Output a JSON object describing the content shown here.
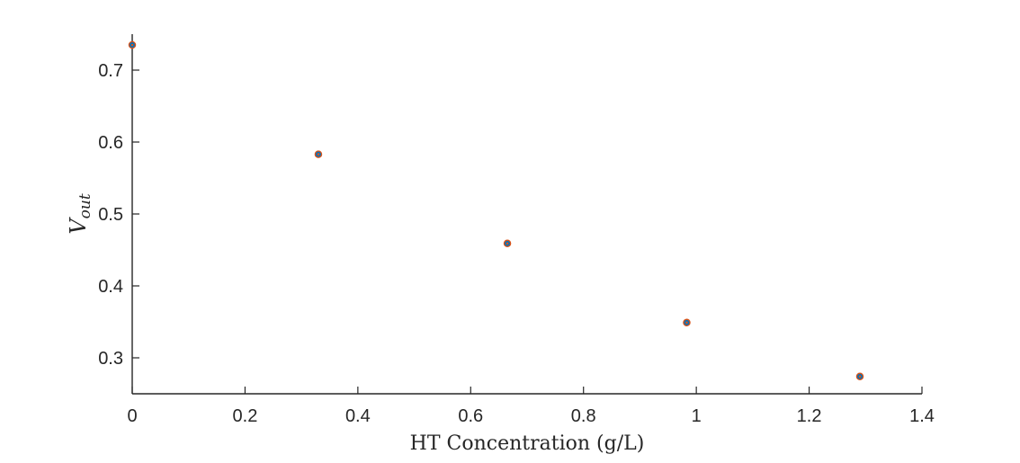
{
  "chart_data": {
    "type": "scatter",
    "title": "",
    "xlabel": "HT Concentration (g/L)",
    "ylabel": {
      "base": "V",
      "subscript": "out"
    },
    "xlim": [
      0,
      1.4
    ],
    "ylim": [
      0.25,
      0.75
    ],
    "xticks": [
      0,
      0.2,
      0.4,
      0.6,
      0.8,
      1,
      1.2,
      1.4
    ],
    "xtick_labels": [
      "0",
      "0.2",
      "0.4",
      "0.6",
      "0.8",
      "1",
      "1.2",
      "1.4"
    ],
    "yticks": [
      0.3,
      0.4,
      0.5,
      0.6,
      0.7
    ],
    "ytick_labels": [
      "0.3",
      "0.4",
      "0.5",
      "0.6",
      "0.7"
    ],
    "grid": false,
    "series": [
      {
        "x": [
          0,
          0.33,
          0.665,
          0.983,
          1.29
        ],
        "y": [
          0.735,
          0.583,
          0.459,
          0.349,
          0.274
        ],
        "marker_fill": "#0072BD",
        "marker_edge": "#D95319"
      }
    ]
  }
}
